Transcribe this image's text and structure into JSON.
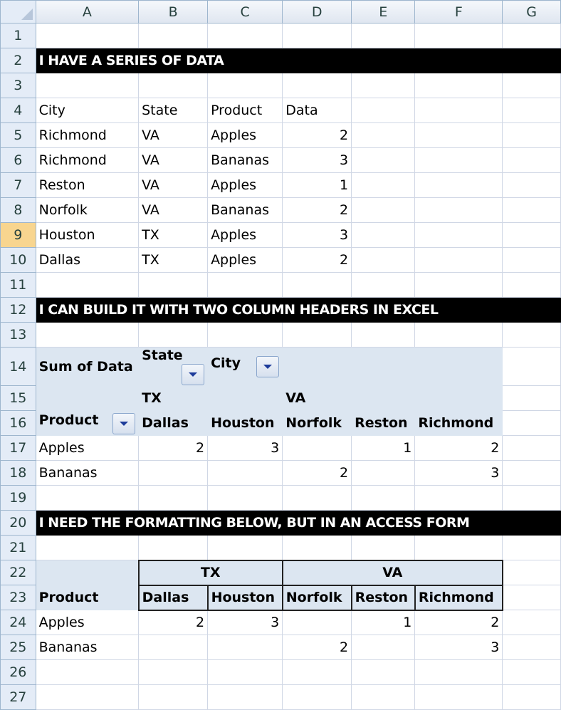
{
  "columns": [
    "A",
    "B",
    "C",
    "D",
    "E",
    "F",
    "G"
  ],
  "selected_row": 9,
  "filter_buttons": [
    "B14",
    "C14",
    "A16"
  ],
  "rows": [
    {
      "n": "1",
      "cells": [
        "",
        "",
        "",
        "",
        "",
        "",
        ""
      ]
    },
    {
      "n": "2",
      "banner": "I HAVE A SERIES OF DATA"
    },
    {
      "n": "3",
      "cells": [
        "",
        "",
        "",
        "",
        "",
        "",
        ""
      ]
    },
    {
      "n": "4",
      "cells": [
        "City",
        "State",
        "Product",
        "Data",
        "",
        "",
        ""
      ]
    },
    {
      "n": "5",
      "cells": [
        "Richmond",
        "VA",
        "Apples",
        "2",
        "",
        "",
        ""
      ]
    },
    {
      "n": "6",
      "cells": [
        "Richmond",
        "VA",
        "Bananas",
        "3",
        "",
        "",
        ""
      ]
    },
    {
      "n": "7",
      "cells": [
        "Reston",
        "VA",
        "Apples",
        "1",
        "",
        "",
        ""
      ]
    },
    {
      "n": "8",
      "cells": [
        "Norfolk",
        "VA",
        "Bananas",
        "2",
        "",
        "",
        ""
      ]
    },
    {
      "n": "9",
      "cells": [
        "Houston",
        "TX",
        "Apples",
        "3",
        "",
        "",
        ""
      ]
    },
    {
      "n": "10",
      "cells": [
        "Dallas",
        "TX",
        "Apples",
        "2",
        "",
        "",
        ""
      ]
    },
    {
      "n": "11",
      "cells": [
        "",
        "",
        "",
        "",
        "",
        "",
        ""
      ]
    },
    {
      "n": "12",
      "banner": "I CAN BUILD IT WITH TWO COLUMN HEADERS IN EXCEL"
    },
    {
      "n": "13",
      "cells": [
        "",
        "",
        "",
        "",
        "",
        "",
        ""
      ]
    },
    {
      "n": "14",
      "pivot": true,
      "cells": [
        "Sum of Data",
        "State",
        "City",
        "",
        "",
        "",
        ""
      ]
    },
    {
      "n": "15",
      "pivot": true,
      "cells": [
        "",
        "TX",
        "",
        "VA",
        "",
        "",
        ""
      ]
    },
    {
      "n": "16",
      "pivot": true,
      "cells": [
        "Product",
        "Dallas",
        "Houston",
        "Norfolk",
        "Reston",
        "Richmond",
        ""
      ]
    },
    {
      "n": "17",
      "cells": [
        "Apples",
        "2",
        "3",
        "",
        "1",
        "2",
        ""
      ]
    },
    {
      "n": "18",
      "cells": [
        "Bananas",
        "",
        "",
        "2",
        "",
        "3",
        ""
      ]
    },
    {
      "n": "19",
      "cells": [
        "",
        "",
        "",
        "",
        "",
        "",
        ""
      ]
    },
    {
      "n": "20",
      "banner": "I NEED THE FORMATTING BELOW, BUT IN AN ACCESS FORM"
    },
    {
      "n": "21",
      "cells": [
        "",
        "",
        "",
        "",
        "",
        "",
        ""
      ]
    },
    {
      "n": "22",
      "groups": [
        {
          "label": "TX",
          "span": 2
        },
        {
          "label": "VA",
          "span": 3
        }
      ]
    },
    {
      "n": "23",
      "fmt": true,
      "cells": [
        "Product",
        "Dallas",
        "Houston",
        "Norfolk",
        "Reston",
        "Richmond",
        ""
      ]
    },
    {
      "n": "24",
      "cells": [
        "Apples",
        "2",
        "3",
        "",
        "1",
        "2",
        ""
      ]
    },
    {
      "n": "25",
      "cells": [
        "Bananas",
        "",
        "",
        "2",
        "",
        "3",
        ""
      ]
    },
    {
      "n": "26",
      "cells": [
        "",
        "",
        "",
        "",
        "",
        "",
        ""
      ]
    },
    {
      "n": "27",
      "cells": [
        "",
        "",
        "",
        "",
        "",
        "",
        ""
      ]
    }
  ]
}
